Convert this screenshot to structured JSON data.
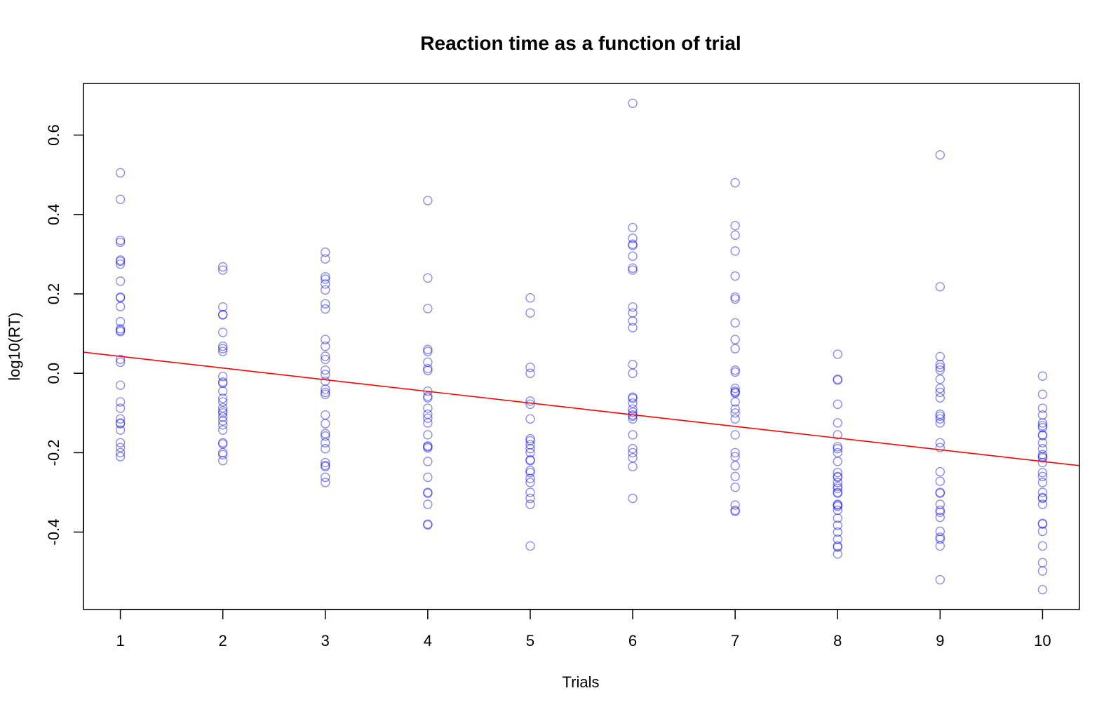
{
  "chart_data": {
    "type": "scatter",
    "title": "Reaction time as a function of trial",
    "xlabel": "Trials",
    "ylabel": "log10(RT)",
    "xlim": [
      0.64,
      10.36
    ],
    "ylim": [
      -0.595,
      0.73
    ],
    "x_ticks": [
      1,
      2,
      3,
      4,
      5,
      6,
      7,
      8,
      9,
      10
    ],
    "y_ticks": [
      "-0.4",
      "-0.2",
      "0.0",
      "0.2",
      "0.4",
      "0.6"
    ],
    "y_tick_values": [
      -0.4,
      -0.2,
      0.0,
      0.2,
      0.4,
      0.6
    ],
    "point_color": "#0000ff",
    "line_color": "#ff0000",
    "regression_line": {
      "intercept": 0.072,
      "slope": -0.0294
    },
    "points": [
      {
        "x": 1,
        "y": [
          0.505,
          0.438,
          0.335,
          0.33,
          0.285,
          0.282,
          0.275,
          0.232,
          0.192,
          0.19,
          0.168,
          0.13,
          0.112,
          0.108,
          0.105,
          0.035,
          0.028,
          -0.03,
          -0.072,
          -0.088,
          -0.115,
          -0.125,
          -0.127,
          -0.143,
          -0.175,
          -0.187,
          -0.2,
          -0.21
        ]
      },
      {
        "x": 2,
        "y": [
          0.268,
          0.26,
          0.167,
          0.148,
          0.147,
          0.103,
          0.068,
          0.062,
          0.055,
          -0.008,
          -0.022,
          -0.025,
          -0.045,
          -0.063,
          -0.072,
          -0.087,
          -0.095,
          -0.1,
          -0.11,
          -0.12,
          -0.13,
          -0.143,
          -0.175,
          -0.178,
          -0.2,
          -0.205,
          -0.22
        ]
      },
      {
        "x": 3,
        "y": [
          0.305,
          0.288,
          0.243,
          0.237,
          0.225,
          0.21,
          0.175,
          0.162,
          0.085,
          0.068,
          0.043,
          0.035,
          0.008,
          -0.003,
          -0.02,
          -0.04,
          -0.048,
          -0.053,
          -0.105,
          -0.127,
          -0.152,
          -0.158,
          -0.175,
          -0.19,
          -0.225,
          -0.232,
          -0.235,
          -0.262,
          -0.275
        ]
      },
      {
        "x": 4,
        "y": [
          0.435,
          0.24,
          0.163,
          0.06,
          0.055,
          0.028,
          0.012,
          0.007,
          -0.045,
          -0.058,
          -0.062,
          -0.088,
          -0.103,
          -0.113,
          -0.125,
          -0.155,
          -0.183,
          -0.185,
          -0.188,
          -0.222,
          -0.262,
          -0.3,
          -0.302,
          -0.33,
          -0.38,
          -0.382
        ]
      },
      {
        "x": 5,
        "y": [
          0.19,
          0.152,
          0.015,
          0.0,
          -0.07,
          -0.078,
          -0.115,
          -0.165,
          -0.17,
          -0.18,
          -0.19,
          -0.2,
          -0.218,
          -0.22,
          -0.245,
          -0.25,
          -0.265,
          -0.275,
          -0.3,
          -0.315,
          -0.33,
          -0.435
        ]
      },
      {
        "x": 6,
        "y": [
          0.68,
          0.367,
          0.34,
          0.325,
          0.322,
          0.295,
          0.265,
          0.26,
          0.167,
          0.152,
          0.132,
          0.115,
          0.022,
          0.0,
          -0.06,
          -0.063,
          -0.075,
          -0.09,
          -0.098,
          -0.105,
          -0.108,
          -0.115,
          -0.155,
          -0.19,
          -0.2,
          -0.213,
          -0.235,
          -0.315
        ]
      },
      {
        "x": 7,
        "y": [
          0.48,
          0.372,
          0.348,
          0.308,
          0.245,
          0.192,
          0.187,
          0.127,
          0.085,
          0.062,
          0.008,
          0.003,
          -0.038,
          -0.045,
          -0.048,
          -0.05,
          -0.072,
          -0.09,
          -0.1,
          -0.115,
          -0.155,
          -0.2,
          -0.21,
          -0.233,
          -0.26,
          -0.287,
          -0.332,
          -0.345,
          -0.348
        ]
      },
      {
        "x": 8,
        "y": [
          0.048,
          -0.015,
          -0.017,
          -0.078,
          -0.125,
          -0.155,
          -0.185,
          -0.19,
          -0.2,
          -0.222,
          -0.25,
          -0.26,
          -0.262,
          -0.275,
          -0.285,
          -0.29,
          -0.3,
          -0.302,
          -0.33,
          -0.332,
          -0.335,
          -0.345,
          -0.365,
          -0.383,
          -0.4,
          -0.418,
          -0.435,
          -0.438,
          -0.455
        ]
      },
      {
        "x": 9,
        "y": [
          0.55,
          0.218,
          0.042,
          0.022,
          0.015,
          0.008,
          -0.015,
          -0.038,
          -0.048,
          -0.062,
          -0.103,
          -0.108,
          -0.115,
          -0.125,
          -0.175,
          -0.187,
          -0.248,
          -0.272,
          -0.3,
          -0.302,
          -0.33,
          -0.345,
          -0.35,
          -0.363,
          -0.398,
          -0.413,
          -0.418,
          -0.435,
          -0.52
        ]
      },
      {
        "x": 10,
        "y": [
          -0.007,
          -0.053,
          -0.088,
          -0.105,
          -0.125,
          -0.132,
          -0.137,
          -0.155,
          -0.157,
          -0.175,
          -0.19,
          -0.205,
          -0.21,
          -0.213,
          -0.225,
          -0.25,
          -0.26,
          -0.275,
          -0.3,
          -0.313,
          -0.315,
          -0.33,
          -0.378,
          -0.38,
          -0.398,
          -0.435,
          -0.477,
          -0.498,
          -0.545
        ]
      }
    ]
  }
}
